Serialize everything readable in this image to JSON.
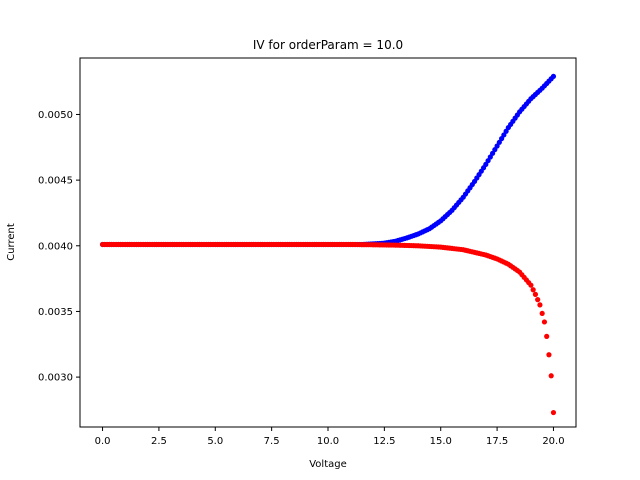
{
  "chart_data": {
    "type": "scatter",
    "title": "IV for orderParam = 10.0",
    "xlabel": "Voltage",
    "ylabel": "Current",
    "xlim": [
      -1.0,
      21.0
    ],
    "ylim": [
      0.00262,
      0.00543
    ],
    "xticks": [
      0.0,
      2.5,
      5.0,
      7.5,
      10.0,
      12.5,
      15.0,
      17.5,
      20.0
    ],
    "xtick_labels": [
      "0.0",
      "2.5",
      "5.0",
      "7.5",
      "10.0",
      "12.5",
      "15.0",
      "17.5",
      "20.0"
    ],
    "yticks": [
      0.003,
      0.0035,
      0.004,
      0.0045,
      0.005
    ],
    "ytick_labels": [
      "0.0030",
      "0.0035",
      "0.0040",
      "0.0045",
      "0.0050"
    ],
    "grid": false,
    "series": [
      {
        "color": "#0000ff",
        "x": [
          0.0,
          1.0,
          2.0,
          3.0,
          4.0,
          5.0,
          6.0,
          7.0,
          8.0,
          9.0,
          10.0,
          11.0,
          11.5,
          12.0,
          12.5,
          13.0,
          13.5,
          14.0,
          14.5,
          15.0,
          15.5,
          16.0,
          16.5,
          17.0,
          17.5,
          18.0,
          18.5,
          19.0,
          19.5,
          20.0
        ],
        "y": [
          0.00401,
          0.00401,
          0.00401,
          0.00401,
          0.00401,
          0.00401,
          0.00401,
          0.00401,
          0.00401,
          0.00401,
          0.00401,
          0.00401,
          0.00401,
          0.004015,
          0.00402,
          0.004035,
          0.00406,
          0.00409,
          0.00413,
          0.00419,
          0.00427,
          0.00437,
          0.00449,
          0.00462,
          0.00476,
          0.0049,
          0.00502,
          0.00512,
          0.0052,
          0.00529
        ]
      },
      {
        "color": "#ff0000",
        "x": [
          0.0,
          1.0,
          2.0,
          3.0,
          4.0,
          5.0,
          6.0,
          7.0,
          8.0,
          9.0,
          10.0,
          11.0,
          12.0,
          13.0,
          14.0,
          15.0,
          15.5,
          16.0,
          16.5,
          17.0,
          17.5,
          18.0,
          18.5,
          19.0,
          19.2,
          19.4,
          19.6,
          19.7,
          19.8,
          19.9,
          20.0
        ],
        "y": [
          0.00401,
          0.00401,
          0.00401,
          0.00401,
          0.00401,
          0.00401,
          0.00401,
          0.00401,
          0.00401,
          0.00401,
          0.00401,
          0.00401,
          0.004008,
          0.004005,
          0.004,
          0.00399,
          0.00398,
          0.00397,
          0.00395,
          0.00393,
          0.0039,
          0.00386,
          0.0038,
          0.0037,
          0.00363,
          0.00355,
          0.00342,
          0.00331,
          0.00317,
          0.00301,
          0.00273
        ]
      }
    ]
  }
}
